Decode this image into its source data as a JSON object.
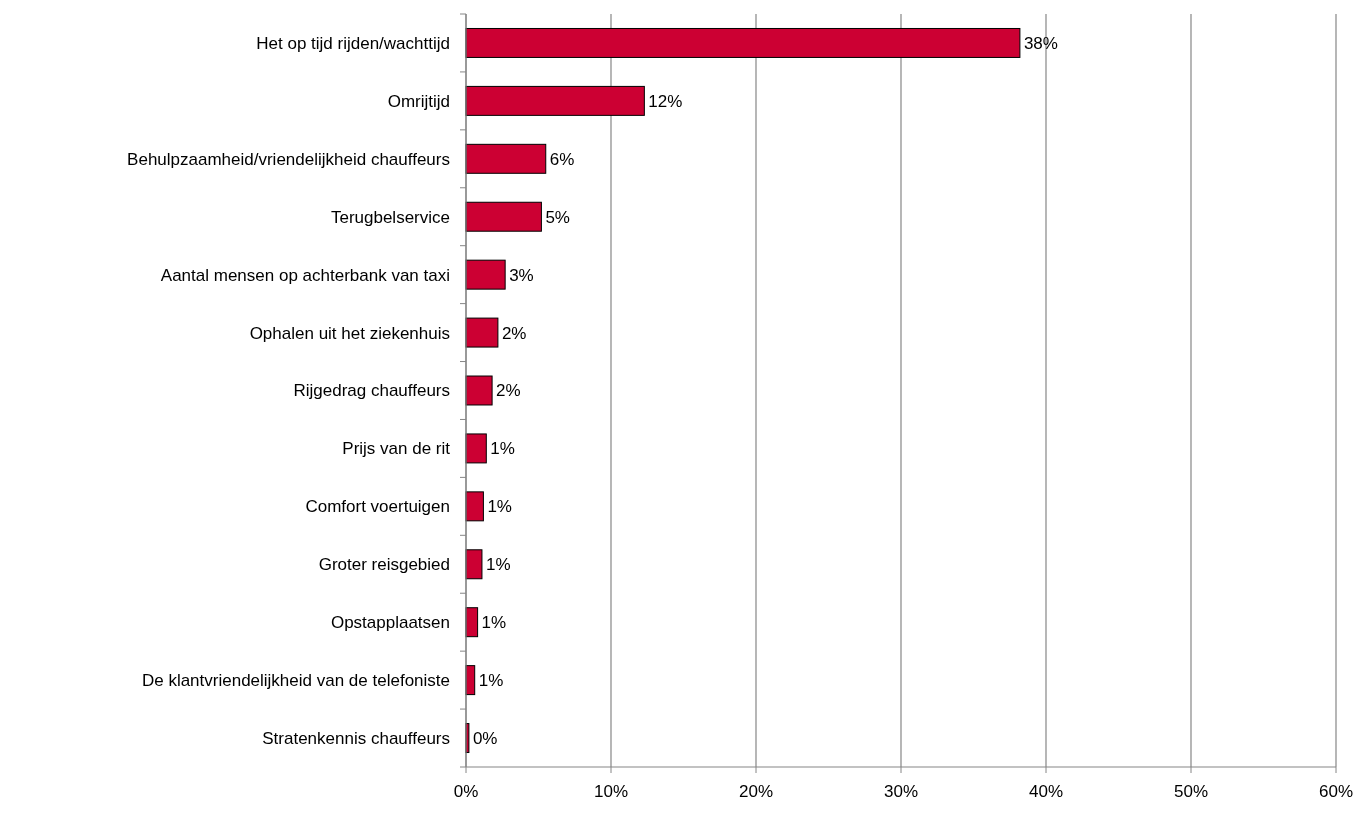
{
  "chart_data": {
    "type": "bar",
    "orientation": "horizontal",
    "categories": [
      "Het op tijd rijden/wachttijd",
      "Omrijtijd",
      "Behulpzaamheid/vriendelijkheid chauffeurs",
      "Terugbelservice",
      "Aantal mensen op achterbank van taxi",
      "Ophalen uit het ziekenhuis",
      "Rijgedrag chauffeurs",
      "Prijs van de rit",
      "Comfort voertuigen",
      "Groter reisgebied",
      "Opstapplaatsen",
      "De klantvriendelijkheid van de telefoniste",
      "Stratenkennis chauffeurs"
    ],
    "values": [
      38.2,
      12.3,
      5.5,
      5.2,
      2.7,
      2.2,
      1.8,
      1.4,
      1.2,
      1.1,
      0.8,
      0.6,
      0.2
    ],
    "value_labels": [
      "38%",
      "12%",
      "6%",
      "5%",
      "3%",
      "2%",
      "2%",
      "1%",
      "1%",
      "1%",
      "1%",
      "1%",
      "0%"
    ],
    "color": "#cc0033",
    "xlim": [
      0,
      60
    ],
    "xticks": [
      {
        "value": 0,
        "label": "0%"
      },
      {
        "value": 10,
        "label": "10%"
      },
      {
        "value": 20,
        "label": "20%"
      },
      {
        "value": 30,
        "label": "30%"
      },
      {
        "value": 40,
        "label": "40%"
      },
      {
        "value": 50,
        "label": "50%"
      },
      {
        "value": 60,
        "label": "60%"
      }
    ],
    "grid": "x"
  }
}
